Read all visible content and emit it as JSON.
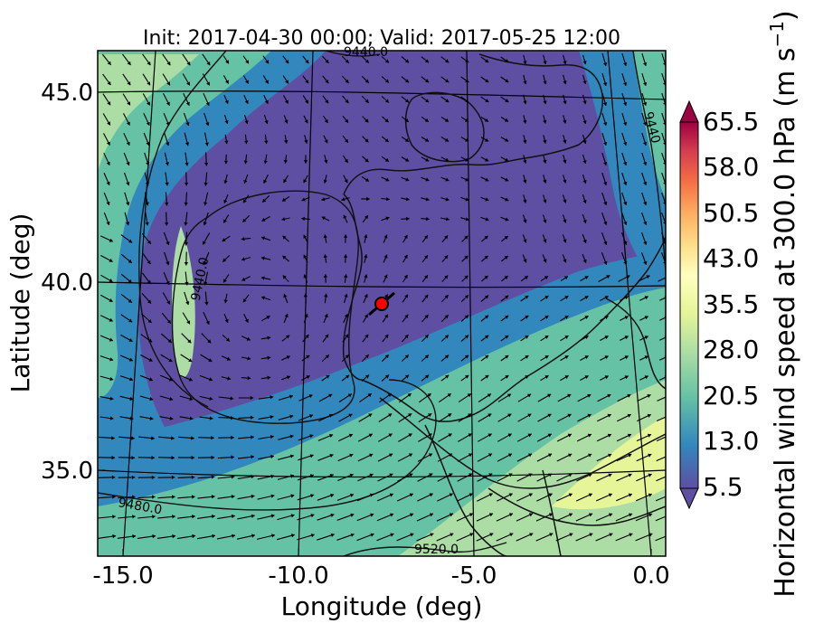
{
  "title": "Init: 2017-04-30 00:00; Valid: 2017-05-25 12:00",
  "map": {
    "xlabel": "Longitude (deg)",
    "ylabel": "Latitude (deg)",
    "x_ticks": [
      "-15.0",
      "-10.0",
      "-5.0",
      "0.0"
    ],
    "y_ticks": [
      "45.0",
      "40.0",
      "35.0"
    ],
    "x_tick_values": [
      -15,
      -10,
      -5,
      0
    ],
    "y_tick_values": [
      45,
      40,
      35
    ],
    "xlim": [
      -16,
      0.3
    ],
    "ylim": [
      32.5,
      46
    ],
    "marker": {
      "lon": -7.6,
      "lat": 39.3,
      "color": "#ff0000"
    },
    "contour_labels": [
      "9440.0",
      "9440.0",
      "9480.0",
      "9520.0",
      "9440"
    ],
    "wind_vectors": "shown",
    "field": "Horizontal wind speed at 300.0 hPa"
  },
  "colorbar": {
    "label": "Horizontal wind speed at 300.0 hPa (m s",
    "label_sup": "−1",
    "label_end": ")",
    "ticks": [
      "65.5",
      "58.0",
      "50.5",
      "43.0",
      "35.5",
      "28.0",
      "20.5",
      "13.0",
      "5.5"
    ],
    "range": [
      5.5,
      65.5
    ],
    "colormap": "Spectral_r",
    "colors": [
      "#5e4fa2",
      "#3288bd",
      "#66c2a5",
      "#abdda4",
      "#e6f598",
      "#ffffbf",
      "#fee08b",
      "#fdae61",
      "#f46d43",
      "#d53e4f",
      "#9e0142"
    ]
  }
}
